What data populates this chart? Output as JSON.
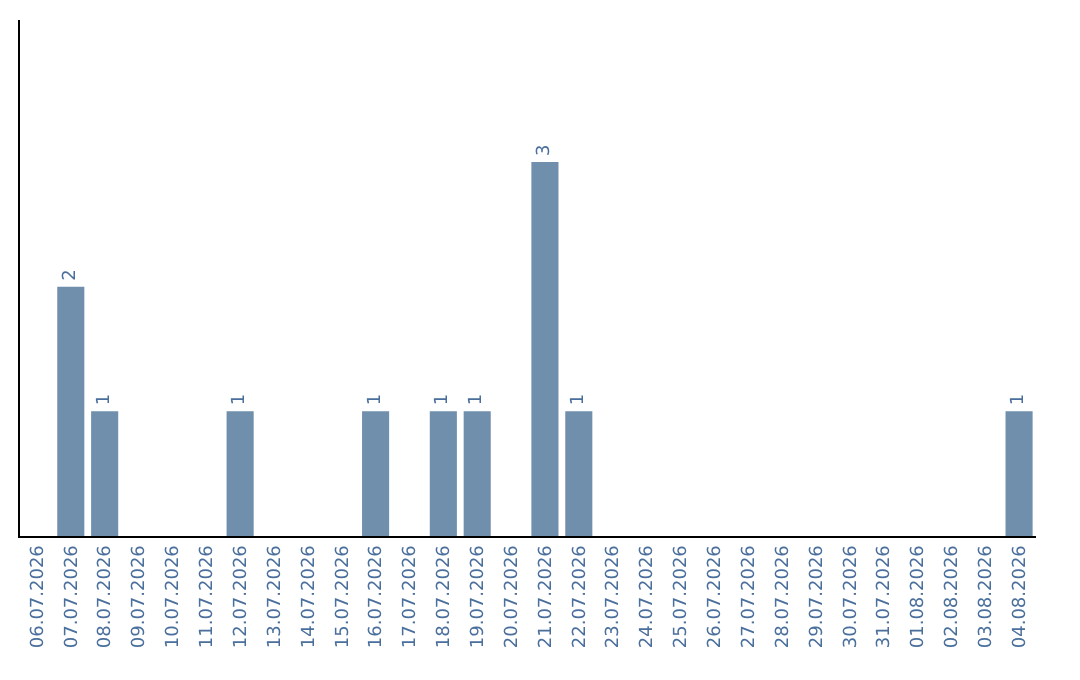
{
  "chart_data": {
    "type": "bar",
    "categories": [
      "06.07.2026",
      "07.07.2026",
      "08.07.2026",
      "09.07.2026",
      "10.07.2026",
      "11.07.2026",
      "12.07.2026",
      "13.07.2026",
      "14.07.2026",
      "15.07.2026",
      "16.07.2026",
      "17.07.2026",
      "18.07.2026",
      "19.07.2026",
      "20.07.2026",
      "21.07.2026",
      "22.07.2026",
      "23.07.2026",
      "24.07.2026",
      "25.07.2026",
      "26.07.2026",
      "27.07.2026",
      "28.07.2026",
      "29.07.2026",
      "30.07.2026",
      "31.07.2026",
      "01.08.2026",
      "02.08.2026",
      "03.08.2026",
      "04.08.2026"
    ],
    "values": [
      0,
      2,
      1,
      0,
      0,
      0,
      1,
      0,
      0,
      0,
      1,
      0,
      1,
      1,
      0,
      3,
      1,
      0,
      0,
      0,
      0,
      0,
      0,
      0,
      0,
      0,
      0,
      0,
      0,
      1
    ],
    "value_labels": [
      null,
      "2",
      "1",
      null,
      null,
      null,
      "1",
      null,
      null,
      null,
      "1",
      null,
      "1",
      "1",
      null,
      "3",
      "1",
      null,
      null,
      null,
      null,
      null,
      null,
      null,
      null,
      null,
      null,
      null,
      null,
      "1"
    ],
    "color": "#6f8fad",
    "legend": false
  }
}
